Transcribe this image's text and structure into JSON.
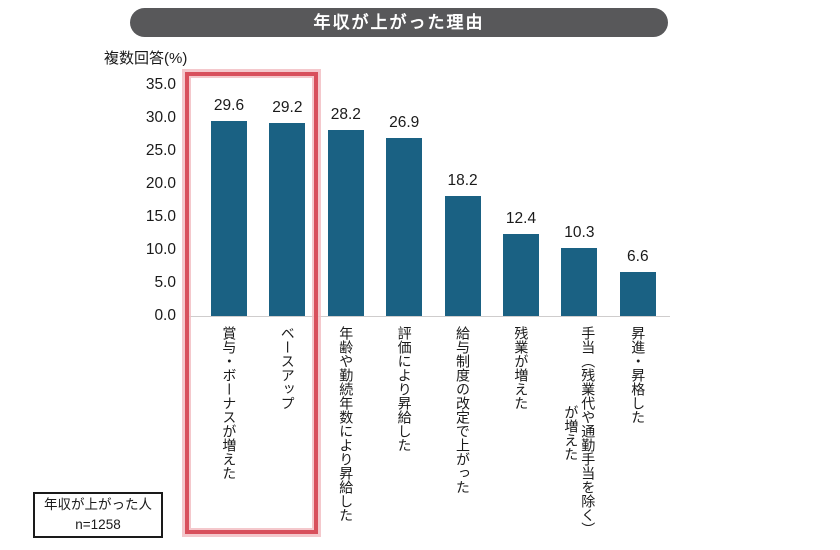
{
  "header": {
    "title": "年収が上がった理由"
  },
  "note_box": {
    "line1": "年収が上がった人",
    "line2": "n=1258"
  },
  "chart_data": {
    "type": "bar",
    "title": "年収が上がった理由",
    "ylabel": "複数回答(%)",
    "xlabel": "",
    "ylim": [
      0,
      35
    ],
    "ytick_step": 5,
    "ytick_labels": [
      "35.0",
      "30.0",
      "25.0",
      "20.0",
      "15.0",
      "10.0",
      "5.0",
      "0.0"
    ],
    "grid": false,
    "legend_position": "none",
    "categories": [
      "賞与・ボーナスが増えた",
      "ベースアップ",
      "年齢や勤続年数により昇給した",
      "評価により昇給した",
      "給与制度の改定で上がった",
      "残業が増えた",
      "手当（残業代や通勤手当を除く）が増えた",
      "昇進・昇格した"
    ],
    "category_lines": [
      [
        "賞与・ボーナスが増えた"
      ],
      [
        "ベースアップ"
      ],
      [
        "年齢や勤続年数により昇給した"
      ],
      [
        "評価により昇給した"
      ],
      [
        "給与制度の改定で上がった"
      ],
      [
        "残業が増えた"
      ],
      [
        "手当（残業代や通勤手当を除く）",
        "が増えた"
      ],
      [
        "昇進・昇格した"
      ]
    ],
    "values": [
      29.6,
      29.2,
      28.2,
      26.9,
      18.2,
      12.4,
      10.3,
      6.6
    ],
    "bar_color": "#1a6183",
    "highlight": {
      "indices": [
        0,
        1
      ],
      "border_color": "#d8505c"
    },
    "sample_note": "年収が上がった人 n=1258"
  },
  "colors": {
    "title_bg": "#58585a",
    "title_text": "#ffffff",
    "bar": "#1a6183",
    "highlight_red": "#d8505c",
    "axis_line": "#cfcdcd",
    "text": "#1a1a1a"
  }
}
